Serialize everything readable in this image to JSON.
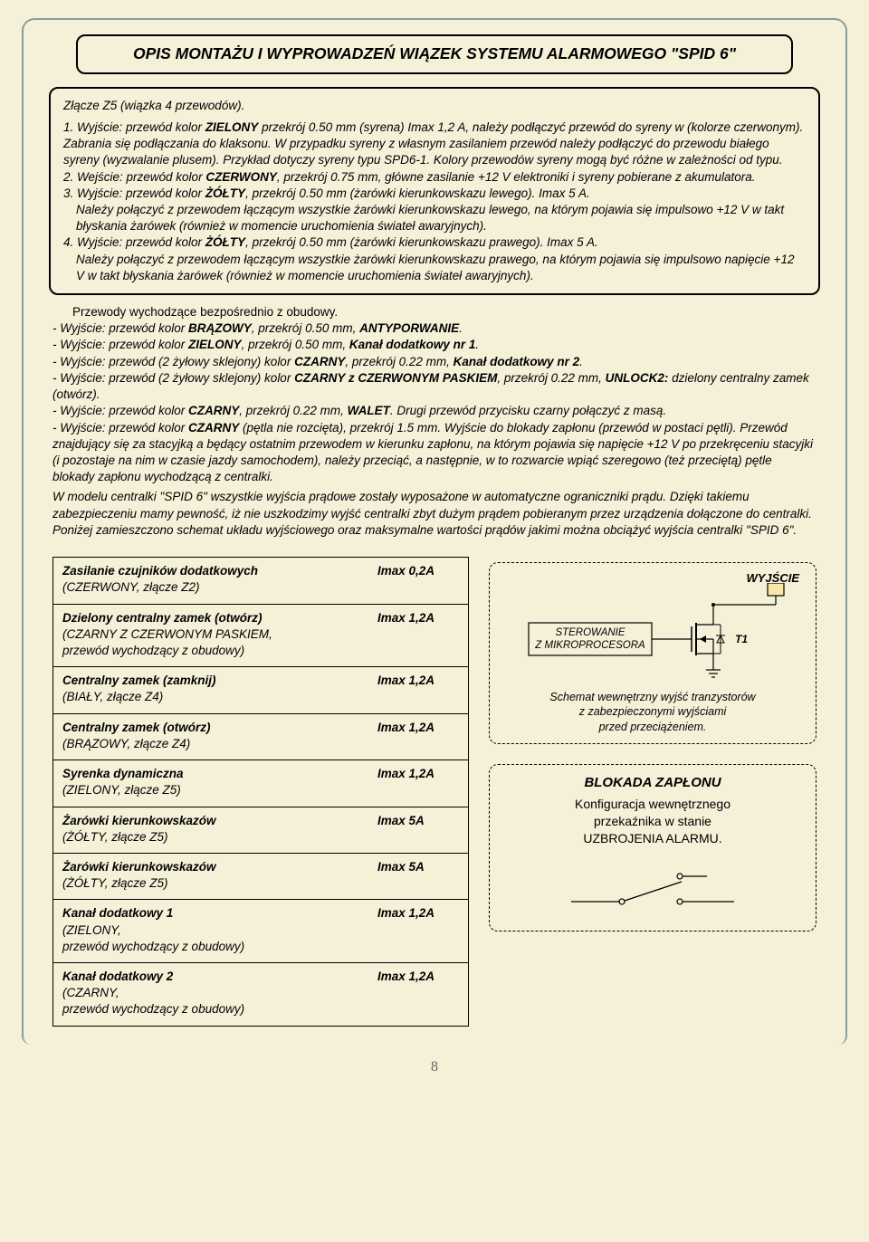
{
  "title": "OPIS MONTAŻU I WYPROWADZEŃ WIĄZEK SYSTEMU ALARMOWEGO \"SPID 6\"",
  "z5": {
    "head": "Złącze Z5 (wiązka 4 przewodów).",
    "i1a": "1. Wyjście: przewód kolor ",
    "i1b": " przekrój 0.50 mm (syrena) Imax 1,2 A, należy podłączyć  przewód do syreny w (kolorze czerwonym). Zabrania się podłączania do klaksonu. W przypadku syreny z własnym zasilaniem przewód należy podłączyć do przewodu białego syreny (wyzwalanie plusem). Przykład dotyczy syreny typu SPD6-1. Kolory przewodów syreny mogą być różne w zależności od typu.",
    "i1w": "ZIELONY",
    "i2a": "2. Wejście: przewód kolor ",
    "i2b": ", przekrój 0.75 mm, główne zasilanie +12 V elektroniki i syreny pobierane z akumulatora.",
    "i2w": "CZERWONY",
    "i3a": "3. Wyjście: przewód kolor ",
    "i3b": ", przekrój 0.50 mm (żarówki kierunkowskazu lewego). Imax 5 A.",
    "i3w": "ŻÓŁTY",
    "i3c": "Należy połączyć z przewodem łączącym wszystkie żarówki kierunkowskazu lewego, na którym pojawia się impulsowo +12 V w takt błyskania żarówek (również w momencie uruchomienia świateł awaryjnych).",
    "i4a": "4. Wyjście: przewód kolor ",
    "i4b": ", przekrój 0.50 mm (żarówki kierunkowskazu prawego). Imax 5 A.",
    "i4w": "ŻÓŁTY",
    "i4c": "Należy połączyć z przewodem łączącym wszystkie żarówki kierunkowskazu prawego, na którym pojawia się impulsowo napięcie +12 V w takt błyskania żarówek (również w momencie uruchomienia świateł awaryjnych)."
  },
  "body": {
    "lead": "Przewody wychodzące bezpośrednio z obudowy.",
    "p1a": "- Wyjście: przewód kolor ",
    "p1w": "BRĄZOWY",
    "p1b": ", przekrój 0.50 mm, ",
    "p1c": "ANTYPORWANIE",
    "p1d": ".",
    "p2a": "- Wyjście: przewód kolor ",
    "p2w": "ZIELONY",
    "p2b": ", przekrój 0.50 mm, ",
    "p2c": "Kanał dodatkowy nr 1",
    "p2d": ".",
    "p3a": "- Wyjście: przewód (2 żyłowy sklejony) kolor ",
    "p3w": "CZARNY",
    "p3b": ", przekrój 0.22 mm, ",
    "p3c": "Kanał dodatkowy nr 2",
    "p3d": ".",
    "p4a": "- Wyjście: przewód (2 żyłowy sklejony) kolor ",
    "p4w": "CZARNY z CZERWONYM PASKIEM",
    "p4b": ", przekrój 0.22 mm, ",
    "p4c": "UNLOCK2:",
    "p4d": " dzielony centralny zamek (otwórz).",
    "p5a": "- Wyjście: przewód kolor ",
    "p5w": "CZARNY",
    "p5b": ", przekrój 0.22 mm, ",
    "p5c": "WALET",
    "p5d": ". Drugi przewód przycisku czarny połączyć z masą.",
    "p6a": "- Wyjście: przewód kolor ",
    "p6w": "CZARNY",
    "p6b": " (pętla nie rozcięta), przekrój 1.5 mm. Wyjście do blokady zapłonu (przewód w postaci pętli). Przewód znajdujący się za stacyjką a będący ostatnim przewodem w kierunku zapłonu, na którym pojawia się napięcie +12 V po przekręceniu stacyjki (i pozostaje na nim w czasie jazdy samochodem), należy przeciąć, a następnie, w to rozwarcie wpiąć szeregowo (też przeciętą) pętle blokady zapłonu wychodzącą z centralki.",
    "para": "W modelu centralki \"SPID 6\" wszystkie wyjścia prądowe zostały wyposażone w automatyczne ograniczniki prądu. Dzięki takiemu zabezpieczeniu mamy pewność, iż nie uszkodzimy wyjść centralki zbyt dużym prądem pobieranym przez urządzenia dołączone do centralki. Poniżej zamieszczono schemat układu wyjściowego oraz maksymalne wartości prądów jakimi można obciążyć wyjścia centralki \"SPID 6\"."
  },
  "table": {
    "rows": [
      {
        "name": "Zasilanie czujników dodatkowych",
        "meta": "(CZERWONY, złącze Z2)",
        "val": "Imax 0,2A"
      },
      {
        "name": "Dzielony centralny zamek (otwórz)",
        "meta": "(CZARNY Z CZERWONYM PASKIEM,\nprzewód wychodzący z obudowy)",
        "val": "Imax 1,2A"
      },
      {
        "name": "Centralny zamek (zamknij)",
        "meta": "(BIAŁY, złącze Z4)",
        "val": "Imax 1,2A"
      },
      {
        "name": "Centralny zamek (otwórz)",
        "meta": "(BRĄZOWY, złącze Z4)",
        "val": "Imax 1,2A"
      },
      {
        "name": "Syrenka dynamiczna",
        "meta": "(ZIELONY, złącze Z5)",
        "val": "Imax 1,2A"
      },
      {
        "name": "Żarówki kierunkowskazów",
        "meta": "(ŻÓŁTY, złącze Z5)",
        "val": "Imax 5A"
      },
      {
        "name": "Żarówki kierunkowskazów",
        "meta": "(ŻÓŁTY, złącze Z5)",
        "val": "Imax 5A"
      },
      {
        "name": "Kanał dodatkowy 1",
        "meta": "(ZIELONY,\nprzewód wychodzący z obudowy)",
        "val": "Imax 1,2A"
      },
      {
        "name": "Kanał dodatkowy 2",
        "meta": "(CZARNY,\nprzewód wychodzący z obudowy)",
        "val": "Imax 1,2A"
      }
    ]
  },
  "dia1": {
    "wyjscie": "WYJŚCIE",
    "ster": "STEROWANIE\nZ MIKROPROCESORA",
    "t1": "T1",
    "caption": "Schemat wewnętrzny wyjść tranzystorów\nz zabezpieczonymi wyjściami\nprzed przeciążeniem."
  },
  "dia2": {
    "h": "BLOKADA ZAPŁONU",
    "t": "Konfiguracja wewnętrznego\nprzekaźnika w stanie\nUZBROJENIA  ALARMU."
  },
  "page": "8",
  "colors": {
    "page_bg": "#f5f0d8",
    "border_tint": "rgba(90,120,140,0.7)",
    "output_fill": "#f8e8a8"
  }
}
